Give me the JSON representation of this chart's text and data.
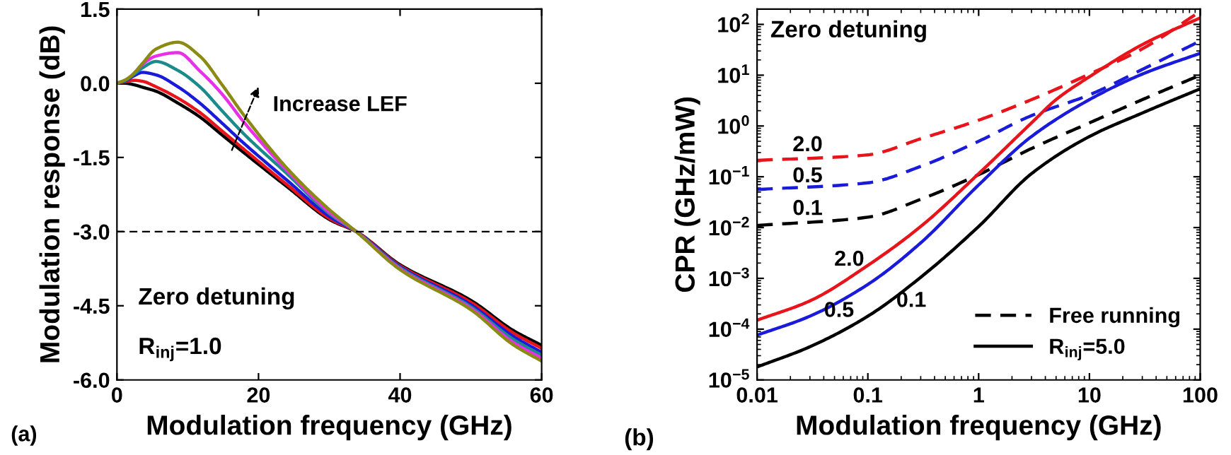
{
  "chart_data": [
    {
      "type": "line",
      "xlabel": "Modulation frequency (GHz)",
      "ylabel": "Modulation response (dB)",
      "xlim": [
        0,
        60
      ],
      "ylim": [
        -6,
        1.5
      ],
      "xticks": [
        0,
        20,
        40,
        60
      ],
      "yticks": [
        {
          "value": 1.5,
          "label": "1.5"
        },
        {
          "value": 0,
          "label": "0.0"
        },
        {
          "value": -1.5,
          "label": "-1.5"
        },
        {
          "value": -3,
          "label": "-3.0"
        },
        {
          "value": -4.5,
          "label": "-4.5"
        },
        {
          "value": -6,
          "label": "-6.0"
        }
      ],
      "grid": false,
      "legend": false,
      "x": [
        0,
        1.2,
        2.4,
        3.6,
        5.5,
        8.6,
        11.7,
        14.8,
        17.9,
        24.1,
        30.2,
        33.8,
        40,
        50,
        56,
        60
      ],
      "series": [
        {
          "color": "#000000",
          "values": [
            0,
            0,
            -0.03,
            -0.08,
            -0.16,
            -0.4,
            -0.68,
            -1.04,
            -1.4,
            -2.1,
            -2.77,
            -3.0,
            -3.67,
            -4.39,
            -5.0,
            -5.3
          ]
        },
        {
          "color": "#e8141c",
          "values": [
            0,
            0.03,
            0.06,
            0.04,
            -0.07,
            -0.3,
            -0.59,
            -0.96,
            -1.33,
            -2.06,
            -2.75,
            -3.0,
            -3.69,
            -4.43,
            -5.05,
            -5.36
          ]
        },
        {
          "color": "#1a1adb",
          "values": [
            0,
            0.05,
            0.15,
            0.22,
            0.17,
            -0.07,
            -0.4,
            -0.8,
            -1.21,
            -1.97,
            -2.71,
            -3.0,
            -3.71,
            -4.48,
            -5.12,
            -5.44
          ]
        },
        {
          "color": "#1a8a8a",
          "values": [
            0,
            0.06,
            0.18,
            0.31,
            0.44,
            0.26,
            -0.07,
            -0.55,
            -1.02,
            -1.84,
            -2.66,
            -3.0,
            -3.73,
            -4.52,
            -5.18,
            -5.5
          ]
        },
        {
          "color": "#e830e8",
          "values": [
            null,
            null,
            0.2,
            0.38,
            0.55,
            0.62,
            0.25,
            -0.21,
            -0.78,
            -1.78,
            -2.63,
            -3.0,
            -3.75,
            -4.55,
            -5.24,
            -5.56
          ]
        },
        {
          "color": "#8a8a14",
          "values": [
            0,
            0.07,
            0.2,
            0.4,
            0.69,
            0.83,
            0.55,
            -0.02,
            -0.64,
            -1.73,
            -2.58,
            -3.0,
            -3.77,
            -4.58,
            -5.29,
            -5.62
          ]
        }
      ],
      "ref_lines": [
        {
          "axis": "y",
          "value": -3,
          "color": "#000000",
          "line_style": "dashed"
        }
      ],
      "annotations": [
        "Zero detuning",
        "R$_{inj}$=1.0",
        "(a)",
        "Increase LEF"
      ]
    },
    {
      "type": "line",
      "log": "xy",
      "xlabel": "Modulation frequency (GHz)",
      "ylabel": "CPR (GHz/mW)",
      "xlim": [
        0.01,
        100
      ],
      "ylim": [
        1e-05,
        200
      ],
      "xticks": [
        0.01,
        0.1,
        1,
        10,
        100
      ],
      "yticks": [
        {
          "value": 1e-05,
          "label": "10$^{−5}$"
        },
        {
          "value": 0.0001,
          "label": "10$^{−4}$"
        },
        {
          "value": 0.001,
          "label": "10$^{−3}$"
        },
        {
          "value": 0.01,
          "label": "10$^{−2}$"
        },
        {
          "value": 0.1,
          "label": "10$^{−1}$"
        },
        {
          "value": 1,
          "label": "10$^{0}$"
        },
        {
          "value": 10,
          "label": "10$^{1}$"
        },
        {
          "value": 100,
          "label": "10$^{2}$"
        }
      ],
      "grid": false,
      "legend": "bottom right",
      "series": [
        {
          "color": "#e8141c",
          "line_style": "dashed",
          "x": [
            0.01,
            0.1,
            0.3,
            1,
            3,
            10,
            30,
            100
          ],
          "values": [
            0.21,
            0.27,
            0.56,
            1.3,
            3.3,
            10.5,
            33,
            180
          ]
        },
        {
          "color": "#1a1adb",
          "line_style": "dashed",
          "x": [
            0.01,
            0.1,
            0.3,
            1,
            3,
            10,
            30,
            100
          ],
          "values": [
            0.056,
            0.076,
            0.16,
            0.5,
            1.6,
            4.1,
            13,
            47
          ]
        },
        {
          "name": "Free running",
          "color": "#000000",
          "line_style": "dashed",
          "x": [
            0.01,
            0.1,
            0.3,
            1,
            3,
            10,
            30,
            100
          ],
          "values": [
            0.011,
            0.016,
            0.036,
            0.11,
            0.36,
            1.15,
            3.3,
            10
          ]
        },
        {
          "color": "#e8141c",
          "line_style": "solid",
          "x": [
            0.01,
            0.03,
            0.1,
            0.3,
            1,
            3,
            5,
            10,
            30,
            100
          ],
          "values": [
            0.00015,
            0.00036,
            0.0018,
            0.0105,
            0.115,
            1.15,
            3.3,
            9.3,
            40,
            135
          ]
        },
        {
          "color": "#1a1adb",
          "line_style": "solid",
          "x": [
            0.01,
            0.03,
            0.1,
            0.3,
            1,
            3,
            10,
            30,
            100
          ],
          "values": [
            7.6e-05,
            0.00018,
            0.00076,
            0.005,
            0.069,
            0.62,
            3.3,
            10.5,
            27
          ]
        },
        {
          "name": "R$_{inj}$=5.0",
          "color": "#000000",
          "line_style": "solid",
          "x": [
            0.01,
            0.03,
            0.1,
            0.3,
            1,
            3,
            10,
            30,
            100
          ],
          "values": [
            1.8e-05,
            4.5e-05,
            0.00018,
            0.00105,
            0.0105,
            0.115,
            0.62,
            1.8,
            5.4
          ]
        }
      ],
      "annotations": [
        "Zero detuning",
        "(b)",
        "2.0",
        "0.5",
        "0.1",
        "2.0",
        "0.5",
        "0.1"
      ]
    }
  ]
}
